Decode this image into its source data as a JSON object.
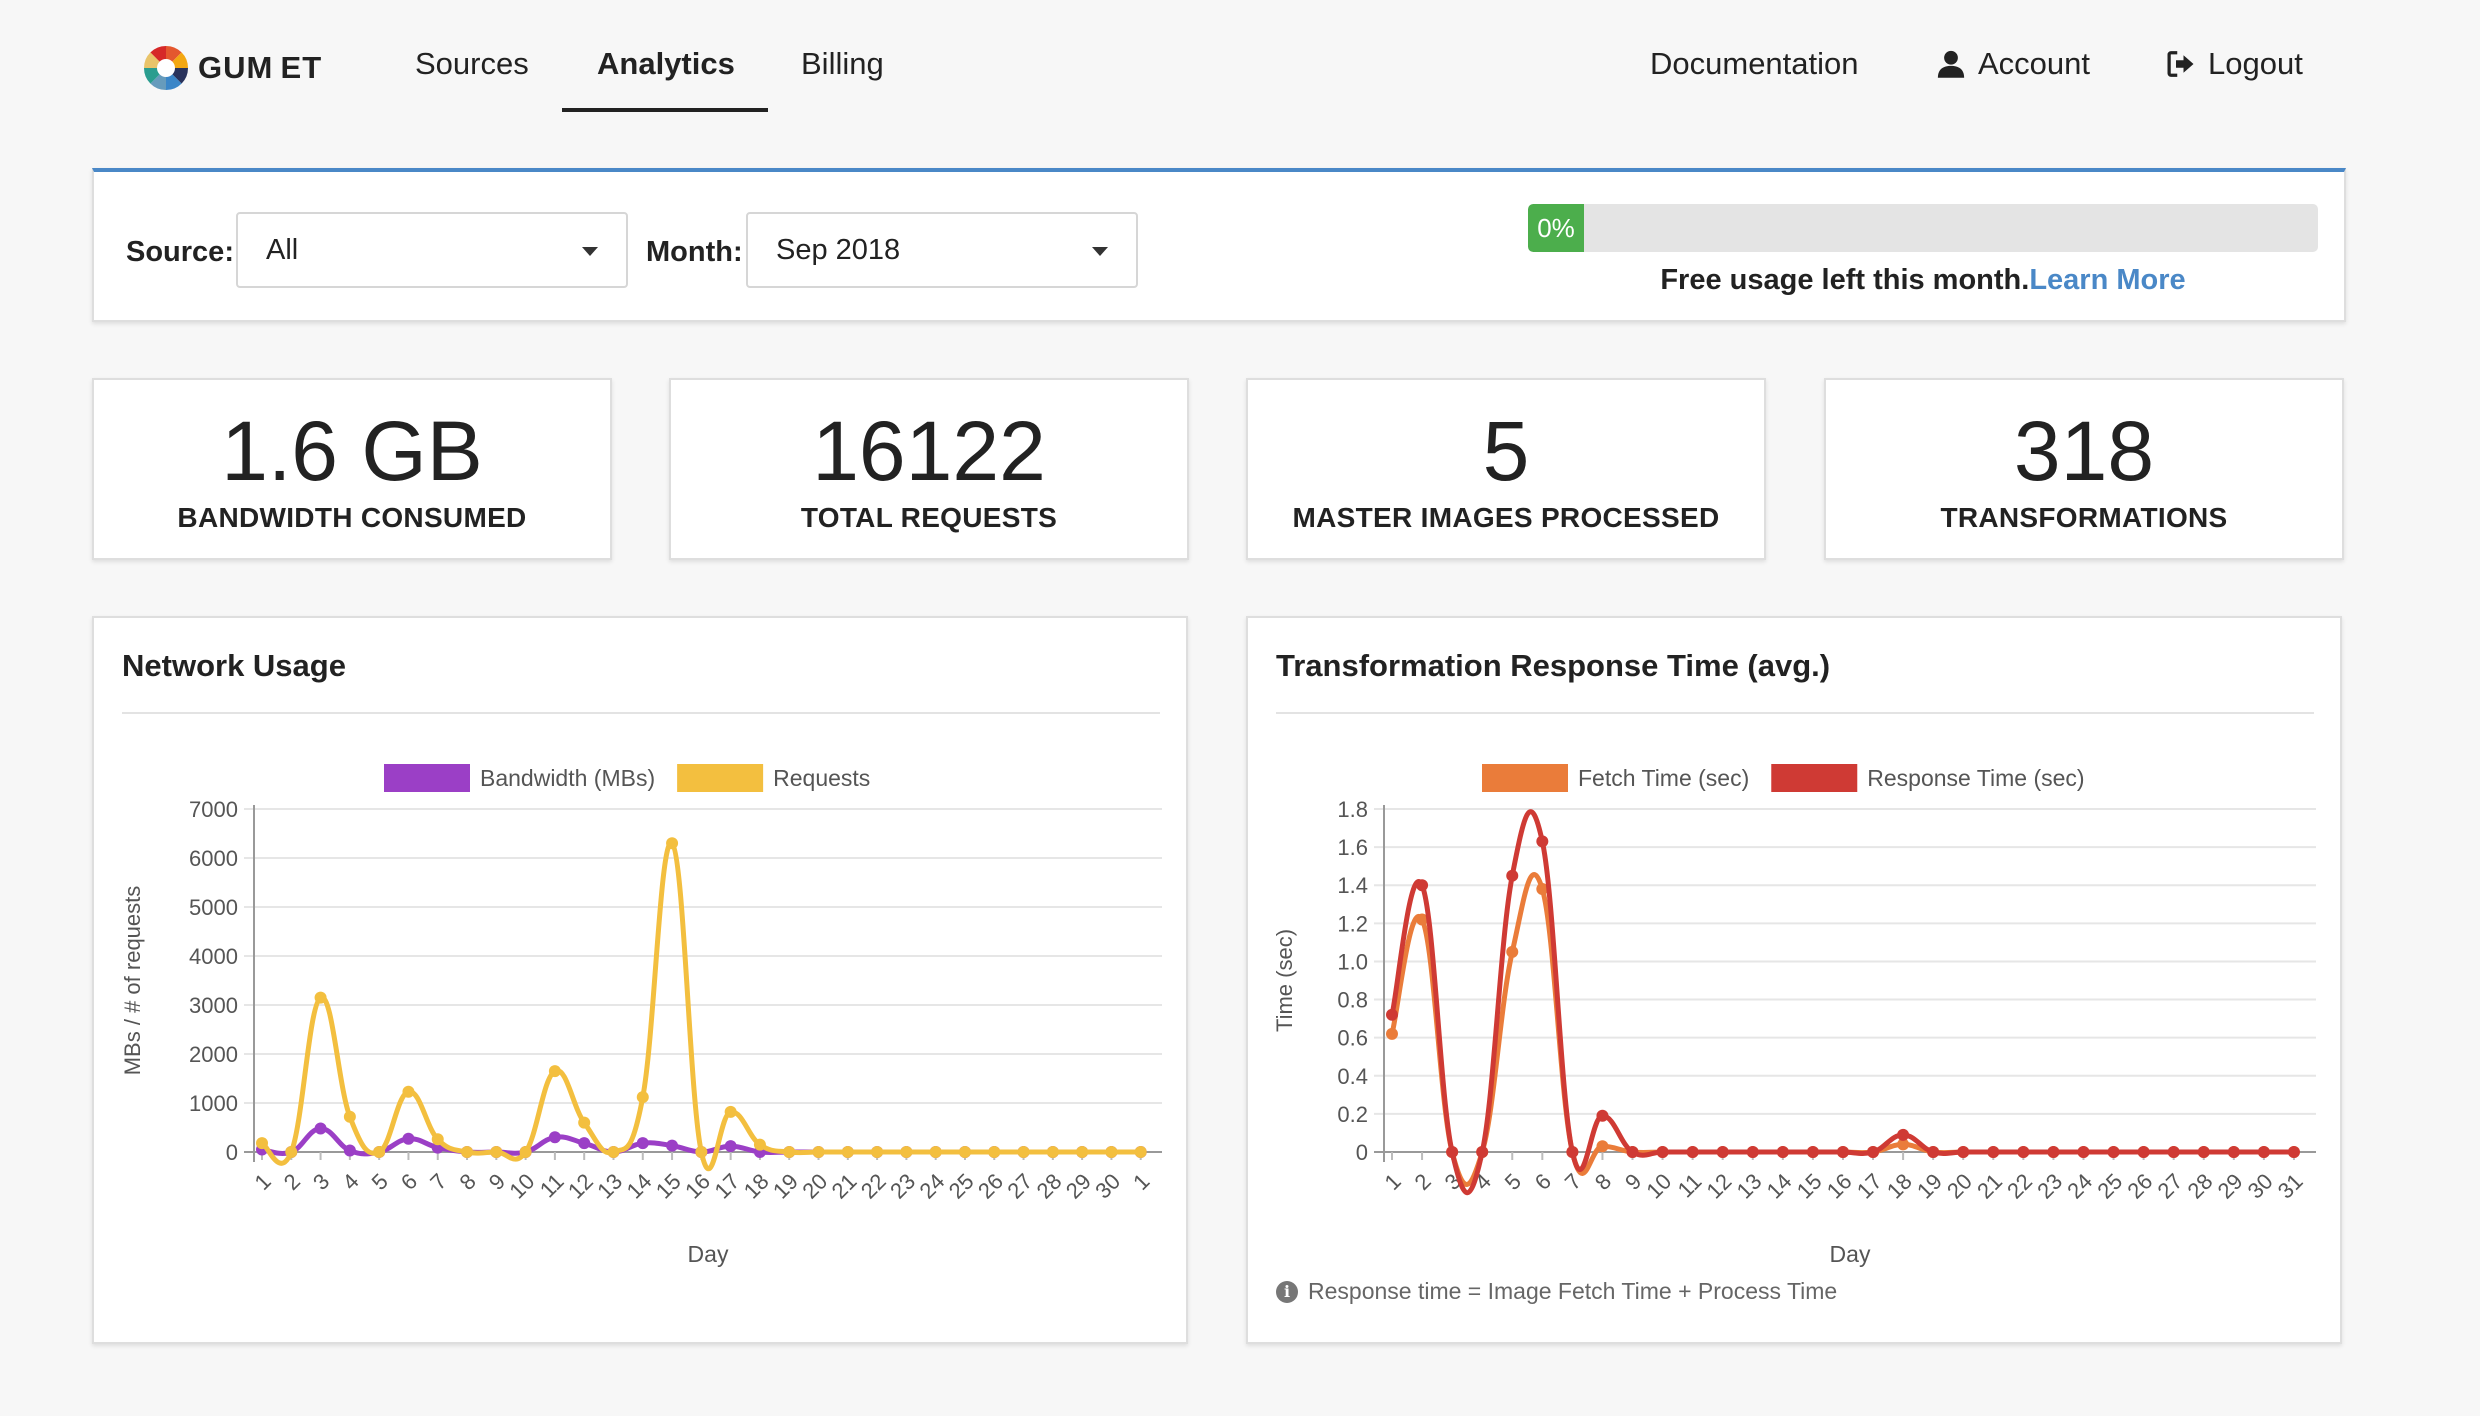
{
  "nav": {
    "logo_text": "GUM ET",
    "links": [
      "Sources",
      "Analytics",
      "Billing"
    ],
    "active_link": "Analytics",
    "right": {
      "documentation": "Documentation",
      "account": "Account",
      "logout": "Logout"
    }
  },
  "filters": {
    "source_label": "Source:",
    "source_value": "All",
    "month_label": "Month:",
    "month_value": "Sep 2018",
    "progress_text": "0%",
    "progress_value": 0,
    "free_usage_text": "Free usage left this month.",
    "learn_more": "Learn More"
  },
  "stats": [
    {
      "value": "1.6 GB",
      "label": "BANDWIDTH CONSUMED"
    },
    {
      "value": "16122",
      "label": "TOTAL REQUESTS"
    },
    {
      "value": "5",
      "label": "MASTER IMAGES PROCESSED"
    },
    {
      "value": "318",
      "label": "TRANSFORMATIONS"
    }
  ],
  "colors": {
    "accent": "#4a88c7",
    "progress": "#4cae4c",
    "bandwidth": "#9b3fc6",
    "requests": "#f3bf3f",
    "fetch": "#ea7c3a",
    "response": "#cf3a34"
  },
  "chart_data": [
    {
      "type": "line",
      "title": "Network Usage",
      "xlabel": "Day",
      "ylabel": "MBs / # of requests",
      "ylim": [
        0,
        7000
      ],
      "yticks": [
        0,
        1000,
        2000,
        3000,
        4000,
        5000,
        6000,
        7000
      ],
      "categories": [
        "1",
        "2",
        "3",
        "4",
        "5",
        "6",
        "7",
        "8",
        "9",
        "10",
        "11",
        "12",
        "13",
        "14",
        "15",
        "16",
        "17",
        "18",
        "19",
        "20",
        "21",
        "22",
        "23",
        "24",
        "25",
        "26",
        "27",
        "28",
        "29",
        "30",
        "1"
      ],
      "legend": "top",
      "series": [
        {
          "name": "Bandwidth (MBs)",
          "color": "#9b3fc6",
          "values": [
            50,
            0,
            480,
            30,
            0,
            270,
            90,
            0,
            0,
            0,
            300,
            180,
            0,
            180,
            130,
            0,
            120,
            0,
            0,
            0,
            0,
            0,
            0,
            0,
            0,
            0,
            0,
            0,
            0,
            0,
            0
          ]
        },
        {
          "name": "Requests",
          "color": "#f3bf3f",
          "values": [
            180,
            0,
            3150,
            720,
            0,
            1230,
            260,
            0,
            0,
            0,
            1650,
            600,
            0,
            1120,
            6300,
            0,
            820,
            150,
            0,
            0,
            0,
            0,
            0,
            0,
            0,
            0,
            0,
            0,
            0,
            0,
            0
          ]
        }
      ]
    },
    {
      "type": "line",
      "title": "Transformation Response Time (avg.)",
      "xlabel": "Day",
      "ylabel": "Time (sec)",
      "ylim": [
        0,
        1.8
      ],
      "yticks": [
        "0",
        "0.2",
        "0.4",
        "0.6",
        "0.8",
        "1.0",
        "1.2",
        "1.4",
        "1.6",
        "1.8"
      ],
      "categories": [
        "1",
        "2",
        "3",
        "4",
        "5",
        "6",
        "7",
        "8",
        "9",
        "10",
        "11",
        "12",
        "13",
        "14",
        "15",
        "16",
        "17",
        "18",
        "19",
        "20",
        "21",
        "22",
        "23",
        "24",
        "25",
        "26",
        "27",
        "28",
        "29",
        "30",
        "31"
      ],
      "legend": "top",
      "note": "Response time = Image Fetch Time + Process Time",
      "series": [
        {
          "name": "Fetch Time (sec)",
          "color": "#ea7c3a",
          "values": [
            0.62,
            1.22,
            0,
            0,
            1.05,
            1.38,
            0,
            0.03,
            0,
            0,
            0,
            0,
            0,
            0,
            0,
            0,
            0,
            0.04,
            0,
            0,
            0,
            0,
            0,
            0,
            0,
            0,
            0,
            0,
            0,
            0,
            0
          ]
        },
        {
          "name": "Response Time (sec)",
          "color": "#cf3a34",
          "values": [
            0.72,
            1.4,
            0,
            0,
            1.45,
            1.63,
            0,
            0.19,
            0,
            0,
            0,
            0,
            0,
            0,
            0,
            0,
            0,
            0.09,
            0,
            0,
            0,
            0,
            0,
            0,
            0,
            0,
            0,
            0,
            0,
            0,
            0
          ]
        }
      ]
    }
  ]
}
